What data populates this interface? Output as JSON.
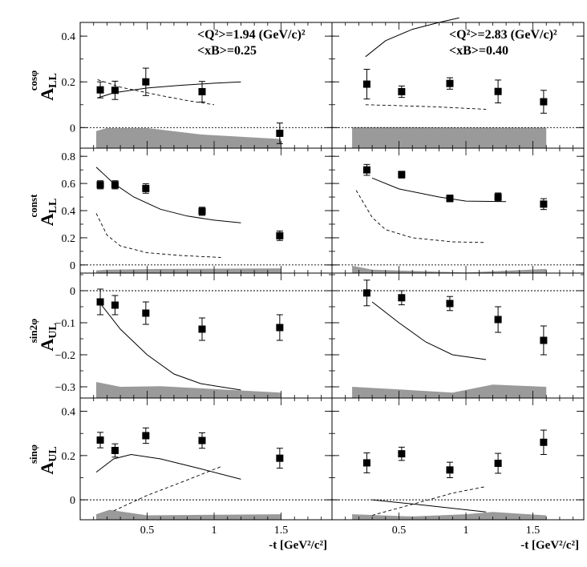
{
  "chart_data": {
    "type": "scatter",
    "x_axis": {
      "label_left": "-t [GeV²/c²]",
      "label_right": "-t [GeV²/c²]",
      "left_range": [
        0.0,
        1.88
      ],
      "right_range": [
        0.0,
        1.88
      ],
      "left_ticks": [
        "0.5",
        "1",
        "1.5"
      ],
      "right_ticks": [
        "0.5",
        "1",
        "1.5"
      ]
    },
    "headers": {
      "left_q2": "<Q²>=1.94 (GeV/c)²",
      "left_xb": "<xB>=0.25",
      "right_q2": "<Q²>=2.83 (GeV/c)²",
      "right_xb": "<xB>=0.40"
    },
    "rows": [
      {
        "ylabel_main": "A",
        "ylabel_sup": "cosφ",
        "ylabel_sub": "LL",
        "ylim": [
          -0.09,
          0.46
        ],
        "yticks": [
          0,
          0.2,
          0.4
        ],
        "ytick_labels": [
          "0",
          "0.2",
          "0.4"
        ],
        "panels": [
          {
            "points": [
              {
                "x": 0.15,
                "y": 0.165,
                "err": 0.035
              },
              {
                "x": 0.26,
                "y": 0.163,
                "err": 0.04
              },
              {
                "x": 0.49,
                "y": 0.2,
                "err": 0.06
              },
              {
                "x": 0.91,
                "y": 0.157,
                "err": 0.045
              },
              {
                "x": 1.49,
                "y": -0.025,
                "err": 0.045
              }
            ],
            "solid": [
              [
                0.13,
                0.13
              ],
              [
                0.25,
                0.152
              ],
              [
                0.5,
                0.173
              ],
              [
                0.75,
                0.185
              ],
              [
                1.0,
                0.194
              ],
              [
                1.2,
                0.2
              ]
            ],
            "dashed": [
              [
                0.13,
                0.21
              ],
              [
                0.3,
                0.177
              ],
              [
                0.6,
                0.14
              ],
              [
                0.8,
                0.118
              ],
              [
                1.0,
                0.1
              ]
            ],
            "band": [
              [
                0.12,
                -0.015
              ],
              [
                0.2,
                -0.002
              ],
              [
                0.5,
                -0.002
              ],
              [
                0.9,
                -0.03
              ],
              [
                1.5,
                -0.05
              ]
            ]
          },
          {
            "points": [
              {
                "x": 0.26,
                "y": 0.19,
                "err": 0.065
              },
              {
                "x": 0.52,
                "y": 0.157,
                "err": 0.025
              },
              {
                "x": 0.88,
                "y": 0.193,
                "err": 0.025
              },
              {
                "x": 1.24,
                "y": 0.158,
                "err": 0.05
              },
              {
                "x": 1.58,
                "y": 0.113,
                "err": 0.05
              }
            ],
            "solid": [
              [
                0.25,
                0.31
              ],
              [
                0.4,
                0.38
              ],
              [
                0.6,
                0.43
              ],
              [
                0.8,
                0.46
              ],
              [
                0.95,
                0.48
              ]
            ],
            "dashed": [
              [
                0.25,
                0.1
              ],
              [
                0.5,
                0.096
              ],
              [
                0.8,
                0.09
              ],
              [
                1.15,
                0.08
              ]
            ],
            "band": [
              [
                0.15,
                0.002
              ],
              [
                0.5,
                0.002
              ],
              [
                1.0,
                0.0
              ],
              [
                1.6,
                0.0
              ]
            ]
          }
        ]
      },
      {
        "ylabel_main": "A",
        "ylabel_sup": "const",
        "ylabel_sub": "LL",
        "ylim": [
          -0.06,
          0.86
        ],
        "yticks": [
          0,
          0.2,
          0.4,
          0.6,
          0.8
        ],
        "ytick_labels": [
          "0",
          "0.2",
          "0.4",
          "0.6",
          "0.8"
        ],
        "panels": [
          {
            "points": [
              {
                "x": 0.15,
                "y": 0.59,
                "err": 0.03
              },
              {
                "x": 0.26,
                "y": 0.59,
                "err": 0.03
              },
              {
                "x": 0.49,
                "y": 0.563,
                "err": 0.035
              },
              {
                "x": 0.91,
                "y": 0.395,
                "err": 0.03
              },
              {
                "x": 1.49,
                "y": 0.215,
                "err": 0.035
              }
            ],
            "solid": [
              [
                0.12,
                0.72
              ],
              [
                0.25,
                0.6
              ],
              [
                0.4,
                0.5
              ],
              [
                0.6,
                0.41
              ],
              [
                0.8,
                0.36
              ],
              [
                1.0,
                0.33
              ],
              [
                1.2,
                0.31
              ]
            ],
            "dashed": [
              [
                0.12,
                0.38
              ],
              [
                0.2,
                0.22
              ],
              [
                0.3,
                0.14
              ],
              [
                0.5,
                0.09
              ],
              [
                0.75,
                0.07
              ],
              [
                1.05,
                0.055
              ]
            ],
            "band": [
              [
                0.12,
                -0.04
              ],
              [
                0.2,
                -0.035
              ],
              [
                0.6,
                -0.03
              ],
              [
                1.5,
                -0.025
              ]
            ]
          },
          {
            "points": [
              {
                "x": 0.26,
                "y": 0.7,
                "err": 0.04
              },
              {
                "x": 0.52,
                "y": 0.665,
                "err": 0.025
              },
              {
                "x": 0.88,
                "y": 0.49,
                "err": 0.025
              },
              {
                "x": 1.24,
                "y": 0.5,
                "err": 0.03
              },
              {
                "x": 1.58,
                "y": 0.448,
                "err": 0.04
              }
            ],
            "solid": [
              [
                0.3,
                0.64
              ],
              [
                0.5,
                0.56
              ],
              [
                0.8,
                0.5
              ],
              [
                1.0,
                0.47
              ],
              [
                1.3,
                0.466
              ]
            ],
            "dashed": [
              [
                0.18,
                0.55
              ],
              [
                0.3,
                0.35
              ],
              [
                0.4,
                0.26
              ],
              [
                0.6,
                0.2
              ],
              [
                0.9,
                0.17
              ],
              [
                1.15,
                0.165
              ]
            ],
            "band": [
              [
                0.15,
                -0.005
              ],
              [
                0.3,
                -0.035
              ],
              [
                1.0,
                -0.055
              ],
              [
                1.6,
                -0.03
              ]
            ]
          }
        ]
      },
      {
        "ylabel_main": "A",
        "ylabel_sup": "sin2φ",
        "ylabel_sub": "UL",
        "ylim": [
          -0.335,
          0.055
        ],
        "yticks": [
          0,
          -0.1,
          -0.2,
          -0.3
        ],
        "ytick_labels": [
          "0",
          "−0.1",
          "−0.2",
          "−0.3"
        ],
        "panels": [
          {
            "points": [
              {
                "x": 0.15,
                "y": -0.035,
                "err": 0.04
              },
              {
                "x": 0.26,
                "y": -0.045,
                "err": 0.03
              },
              {
                "x": 0.49,
                "y": -0.07,
                "err": 0.035
              },
              {
                "x": 0.91,
                "y": -0.12,
                "err": 0.035
              },
              {
                "x": 1.49,
                "y": -0.115,
                "err": 0.04
              }
            ],
            "solid": [
              [
                0.15,
                -0.04
              ],
              [
                0.3,
                -0.12
              ],
              [
                0.5,
                -0.2
              ],
              [
                0.7,
                -0.26
              ],
              [
                0.9,
                -0.29
              ],
              [
                1.2,
                -0.31
              ]
            ],
            "dashed": [],
            "band": [
              [
                0.12,
                -0.285
              ],
              [
                0.3,
                -0.3
              ],
              [
                0.6,
                -0.298
              ],
              [
                1.5,
                -0.318
              ]
            ]
          },
          {
            "points": [
              {
                "x": 0.26,
                "y": -0.007,
                "err": 0.04
              },
              {
                "x": 0.52,
                "y": -0.022,
                "err": 0.022
              },
              {
                "x": 0.88,
                "y": -0.04,
                "err": 0.022
              },
              {
                "x": 1.24,
                "y": -0.09,
                "err": 0.04
              },
              {
                "x": 1.58,
                "y": -0.155,
                "err": 0.045
              }
            ],
            "solid": [
              [
                0.3,
                -0.035
              ],
              [
                0.5,
                -0.1
              ],
              [
                0.7,
                -0.16
              ],
              [
                0.9,
                -0.2
              ],
              [
                1.15,
                -0.215
              ]
            ],
            "dashed": [],
            "band": [
              [
                0.15,
                -0.3
              ],
              [
                0.5,
                -0.308
              ],
              [
                0.9,
                -0.318
              ],
              [
                1.2,
                -0.293
              ],
              [
                1.6,
                -0.3
              ]
            ]
          }
        ]
      },
      {
        "ylabel_main": "A",
        "ylabel_sup": "sinφ",
        "ylabel_sub": "UL",
        "ylim": [
          -0.09,
          0.46
        ],
        "yticks": [
          0,
          0.2,
          0.4
        ],
        "ytick_labels": [
          "0",
          "0.2",
          "0.4"
        ],
        "panels": [
          {
            "points": [
              {
                "x": 0.15,
                "y": 0.27,
                "err": 0.035
              },
              {
                "x": 0.26,
                "y": 0.223,
                "err": 0.03
              },
              {
                "x": 0.49,
                "y": 0.29,
                "err": 0.035
              },
              {
                "x": 0.91,
                "y": 0.268,
                "err": 0.035
              },
              {
                "x": 1.49,
                "y": 0.188,
                "err": 0.045
              }
            ],
            "solid": [
              [
                0.12,
                0.125
              ],
              [
                0.25,
                0.185
              ],
              [
                0.38,
                0.205
              ],
              [
                0.6,
                0.185
              ],
              [
                0.9,
                0.14
              ],
              [
                1.2,
                0.093
              ]
            ],
            "dashed": [
              [
                0.25,
                -0.05
              ],
              [
                0.5,
                0.02
              ],
              [
                0.8,
                0.09
              ],
              [
                1.05,
                0.15
              ]
            ],
            "band": [
              [
                0.12,
                -0.065
              ],
              [
                0.22,
                -0.045
              ],
              [
                0.5,
                -0.07
              ],
              [
                1.5,
                -0.065
              ]
            ]
          },
          {
            "points": [
              {
                "x": 0.26,
                "y": 0.167,
                "err": 0.045
              },
              {
                "x": 0.52,
                "y": 0.208,
                "err": 0.03
              },
              {
                "x": 0.88,
                "y": 0.135,
                "err": 0.035
              },
              {
                "x": 1.24,
                "y": 0.165,
                "err": 0.045
              },
              {
                "x": 1.58,
                "y": 0.26,
                "err": 0.055
              }
            ],
            "solid": [
              [
                0.3,
                0.0
              ],
              [
                0.7,
                -0.025
              ],
              [
                1.15,
                -0.055
              ]
            ],
            "dashed": [
              [
                0.3,
                -0.07
              ],
              [
                0.6,
                -0.02
              ],
              [
                0.9,
                0.03
              ],
              [
                1.15,
                0.06
              ]
            ],
            "band": [
              [
                0.15,
                -0.065
              ],
              [
                0.6,
                -0.075
              ],
              [
                1.0,
                -0.065
              ],
              [
                1.2,
                -0.055
              ],
              [
                1.6,
                -0.07
              ]
            ]
          }
        ]
      }
    ]
  }
}
